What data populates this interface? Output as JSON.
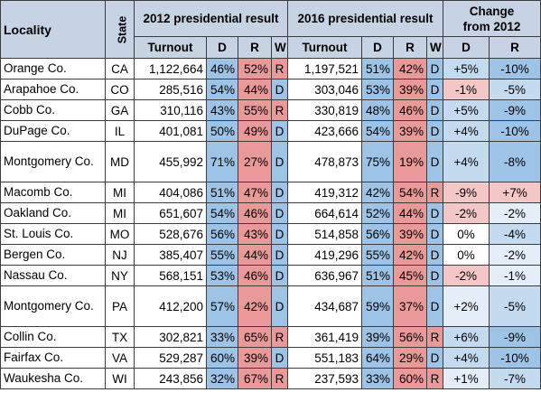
{
  "header": {
    "locality": "Locality",
    "state": "State",
    "group2012": "2012 presidential result",
    "group2016": "2016 presidential result",
    "change_line1": "Change",
    "change_line2": "from 2012",
    "turnout": "Turnout",
    "d": "D",
    "r": "R",
    "w": "W"
  },
  "colors": {
    "dem": "#9dc3e6",
    "rep": "#ea9999",
    "header": "#c5d3e3",
    "change_strong_blue": "#9dc3e6",
    "change_mid_blue": "#c4dbef",
    "change_light_blue": "#e3eef8",
    "change_red": "#f4c7c7"
  },
  "rows": [
    {
      "locality": "Orange Co.",
      "state": "CA",
      "t12": "1,122,664",
      "d12": "46%",
      "r12": "52%",
      "w12": "R",
      "t16": "1,197,521",
      "d16": "51%",
      "r16": "42%",
      "w16": "D",
      "cd": "+5%",
      "cr": "-10%"
    },
    {
      "locality": "Arapahoe Co.",
      "state": "CO",
      "t12": "285,516",
      "d12": "54%",
      "r12": "44%",
      "w12": "D",
      "t16": "303,046",
      "d16": "53%",
      "r16": "39%",
      "w16": "D",
      "cd": "-1%",
      "cr": "-5%"
    },
    {
      "locality": "Cobb Co.",
      "state": "GA",
      "t12": "310,116",
      "d12": "43%",
      "r12": "55%",
      "w12": "R",
      "t16": "330,819",
      "d16": "48%",
      "r16": "46%",
      "w16": "D",
      "cd": "+5%",
      "cr": "-9%"
    },
    {
      "locality": "DuPage Co.",
      "state": "IL",
      "t12": "401,081",
      "d12": "50%",
      "r12": "49%",
      "w12": "D",
      "t16": "423,666",
      "d16": "54%",
      "r16": "39%",
      "w16": "D",
      "cd": "+4%",
      "cr": "-10%"
    },
    {
      "locality": "Montgomery Co.",
      "state": "MD",
      "t12": "455,992",
      "d12": "71%",
      "r12": "27%",
      "w12": "D",
      "t16": "478,873",
      "d16": "75%",
      "r16": "19%",
      "w16": "D",
      "cd": "+4%",
      "cr": "-8%"
    },
    {
      "locality": "Macomb Co.",
      "state": "MI",
      "t12": "404,086",
      "d12": "51%",
      "r12": "47%",
      "w12": "D",
      "t16": "419,312",
      "d16": "42%",
      "r16": "54%",
      "w16": "R",
      "cd": "-9%",
      "cr": "+7%"
    },
    {
      "locality": "Oakland Co.",
      "state": "MI",
      "t12": "651,607",
      "d12": "54%",
      "r12": "46%",
      "w12": "D",
      "t16": "664,614",
      "d16": "52%",
      "r16": "44%",
      "w16": "D",
      "cd": "-2%",
      "cr": "-2%"
    },
    {
      "locality": "St. Louis Co.",
      "state": "MO",
      "t12": "528,676",
      "d12": "56%",
      "r12": "43%",
      "w12": "D",
      "t16": "514,858",
      "d16": "56%",
      "r16": "39%",
      "w16": "D",
      "cd": "0%",
      "cr": "-4%"
    },
    {
      "locality": "Bergen Co.",
      "state": "NJ",
      "t12": "385,407",
      "d12": "55%",
      "r12": "44%",
      "w12": "D",
      "t16": "419,296",
      "d16": "55%",
      "r16": "42%",
      "w16": "D",
      "cd": "0%",
      "cr": "-2%"
    },
    {
      "locality": "Nassau Co.",
      "state": "NY",
      "t12": "568,151",
      "d12": "53%",
      "r12": "46%",
      "w12": "D",
      "t16": "636,967",
      "d16": "51%",
      "r16": "45%",
      "w16": "D",
      "cd": "-2%",
      "cr": "-1%"
    },
    {
      "locality": "Montgomery Co.",
      "state": "PA",
      "t12": "412,200",
      "d12": "57%",
      "r12": "42%",
      "w12": "D",
      "t16": "434,687",
      "d16": "59%",
      "r16": "37%",
      "w16": "D",
      "cd": "+2%",
      "cr": "-5%"
    },
    {
      "locality": "Collin Co.",
      "state": "TX",
      "t12": "302,821",
      "d12": "33%",
      "r12": "65%",
      "w12": "R",
      "t16": "361,419",
      "d16": "39%",
      "r16": "56%",
      "w16": "R",
      "cd": "+6%",
      "cr": "-9%"
    },
    {
      "locality": "Fairfax Co.",
      "state": "VA",
      "t12": "529,287",
      "d12": "60%",
      "r12": "39%",
      "w12": "D",
      "t16": "551,183",
      "d16": "64%",
      "r16": "29%",
      "w16": "D",
      "cd": "+4%",
      "cr": "-10%"
    },
    {
      "locality": "Waukesha Co.",
      "state": "WI",
      "t12": "243,856",
      "d12": "32%",
      "r12": "67%",
      "w12": "R",
      "t16": "237,593",
      "d16": "33%",
      "r16": "60%",
      "w16": "R",
      "cd": "+1%",
      "cr": "-7%"
    }
  ]
}
